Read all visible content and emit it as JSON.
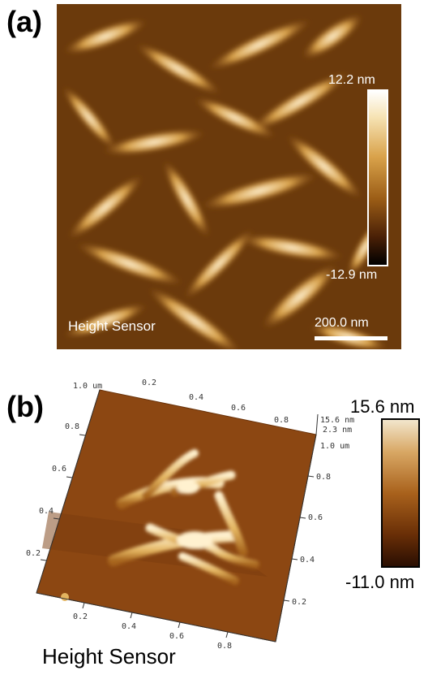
{
  "panel_a": {
    "label": "(a)",
    "colorbar_max": "12.2 nm",
    "colorbar_min": "-12.9 nm",
    "channel": "Height Sensor",
    "scale_bar": "200.0 nm"
  },
  "panel_b": {
    "label": "(b)",
    "colorbar_max": "15.6 nm",
    "colorbar_min": "-11.0 nm",
    "channel": "Height Sensor",
    "axis_top_ticks": [
      "1.0 um",
      "0.2",
      "0.4",
      "0.6",
      "0.8"
    ],
    "axis_left_ticks": [
      "0.8",
      "0.6",
      "0.4",
      "0.2"
    ],
    "axis_right_ticks": [
      "1.0 um",
      "0.8",
      "0.6",
      "0.4",
      "0.2"
    ],
    "axis_bottom_ticks": [
      "0.2",
      "0.4",
      "0.6",
      "0.8"
    ],
    "z_axis_ticks": [
      "15.6 nm",
      "2.3 nm"
    ]
  },
  "colors": {
    "afm_dark": "#4a2006",
    "afm_mid": "#a9621c",
    "afm_light": "#f6e3b4"
  }
}
